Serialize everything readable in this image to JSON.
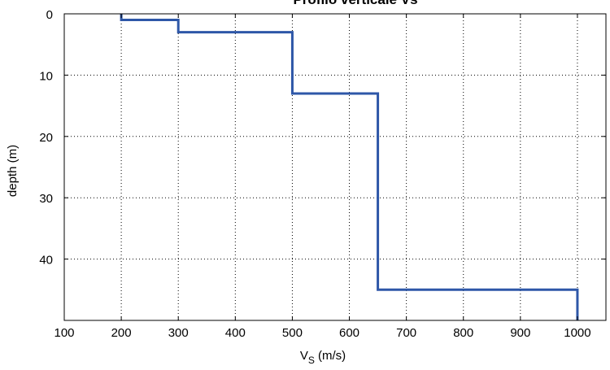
{
  "chart_data": {
    "type": "line",
    "title": "Profilo verticale Vs",
    "xlabel_main": "V",
    "xlabel_sub": "S",
    "xlabel_rest": " (m/s)",
    "ylabel": "depth (m)",
    "xlim": [
      100,
      1050
    ],
    "ylim": [
      0,
      50
    ],
    "y_reversed": true,
    "xticks": [
      100,
      200,
      300,
      400,
      500,
      600,
      700,
      800,
      900,
      1000
    ],
    "yticks": [
      0,
      10,
      20,
      30,
      40
    ],
    "grid": true,
    "line_color": "#2e57a8",
    "series": [
      {
        "x": [
          200,
          200,
          300,
          300,
          500,
          500,
          650,
          650,
          1000,
          1000
        ],
        "y": [
          0,
          1,
          1,
          3,
          3,
          13,
          13,
          45,
          45,
          50
        ]
      }
    ]
  }
}
